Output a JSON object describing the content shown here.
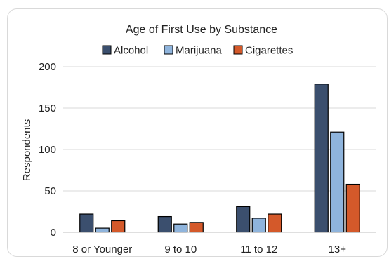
{
  "chart_data": {
    "type": "bar",
    "title": "Age of First Use by Substance",
    "xlabel": "",
    "ylabel": "Respondents",
    "categories": [
      "8 or Younger",
      "9 to 10",
      "11 to 12",
      "13+"
    ],
    "series": [
      {
        "name": "Alcohol",
        "color": "#3b4f6e",
        "values": [
          22,
          19,
          31,
          179
        ]
      },
      {
        "name": "Marijuana",
        "color": "#8fb4dc",
        "values": [
          5,
          10,
          17,
          121
        ]
      },
      {
        "name": "Cigarettes",
        "color": "#d4592a",
        "values": [
          14,
          12,
          22,
          58
        ]
      }
    ],
    "ylim": [
      0,
      200
    ],
    "yticks": [
      0,
      50,
      100,
      150,
      200
    ],
    "grid": true,
    "legend": "top"
  }
}
